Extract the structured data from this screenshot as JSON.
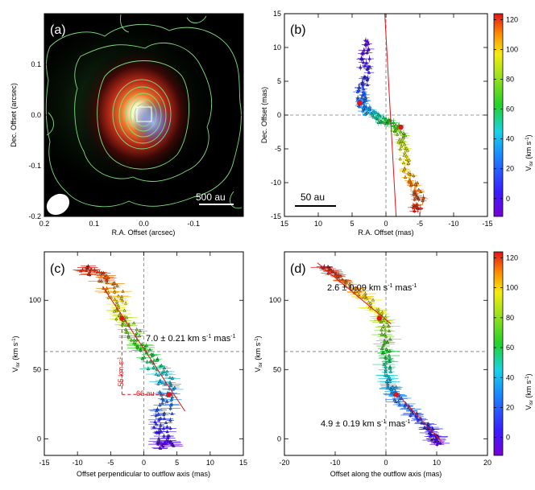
{
  "figure": {
    "colorbar_label": "V",
    "colorbar_sub": "lsr",
    "colorbar_unit": "(km s",
    "colorbar_unit_tail": ")",
    "colorbar_ticks": [
      0,
      20,
      40,
      60,
      80,
      100,
      120
    ],
    "colorbar_range": [
      -12,
      124
    ],
    "colors": {
      "violet": "#7a00d6",
      "blue": "#1a3cff",
      "cyan": "#19d3e6",
      "green": "#24d12a",
      "yellow": "#f4ec10",
      "orange": "#ff8c00",
      "red": "#e0141a"
    }
  },
  "chart_data": [
    {
      "panel": "(a)",
      "type": "heatmap",
      "description_title": "",
      "xlabel": "R.A. Offset (arcsec)",
      "ylabel": "Dec. Offset (arcsec)",
      "xlim": [
        0.2,
        -0.2
      ],
      "ylim": [
        -0.2,
        0.2
      ],
      "xticks": [
        "0.2",
        "0.1",
        "0.0",
        "-0.1"
      ],
      "yticks": [
        "-0.2",
        "-0.1",
        "0.0",
        "0.1"
      ],
      "scalebar_label": "500 au"
    },
    {
      "panel": "(b)",
      "type": "scatter",
      "xlabel": "R.A. Offset (mas)",
      "ylabel": "Dec. Offset (mas)",
      "xlim": [
        15,
        -15
      ],
      "ylim": [
        -15,
        15
      ],
      "xticks": [
        15,
        10,
        5,
        0,
        -5,
        -10,
        -15
      ],
      "yticks": [
        -15,
        -10,
        -5,
        0,
        5,
        10,
        15
      ],
      "scalebar_label": "50 au",
      "trend": [
        {
          "x": 3.0,
          "y": 11,
          "v": -5
        },
        {
          "x": 3.0,
          "y": 8,
          "v": 0
        },
        {
          "x": 3.3,
          "y": 5,
          "v": 8
        },
        {
          "x": 3.6,
          "y": 2.5,
          "v": 25
        },
        {
          "x": 3.5,
          "y": 1.5,
          "v": 28
        },
        {
          "x": 2.5,
          "y": 0.5,
          "v": 38
        },
        {
          "x": 1.0,
          "y": -0.5,
          "v": 52
        },
        {
          "x": -0.5,
          "y": -1.0,
          "v": 62
        },
        {
          "x": -2.0,
          "y": -2.0,
          "v": 75
        },
        {
          "x": -2.5,
          "y": -4.0,
          "v": 88
        },
        {
          "x": -2.8,
          "y": -7.0,
          "v": 98
        },
        {
          "x": -4.0,
          "y": -10.0,
          "v": 110
        },
        {
          "x": -5.0,
          "y": -12.0,
          "v": 116
        },
        {
          "x": -4.5,
          "y": -14.0,
          "v": 122
        }
      ],
      "markers": [
        {
          "x": 3.9,
          "y": 1.8
        },
        {
          "x": -2.2,
          "y": -1.8
        }
      ],
      "fit_line": [
        {
          "x": 0.2,
          "y": 15.5
        },
        {
          "x": -1.5,
          "y": -15
        }
      ]
    },
    {
      "panel": "(c)",
      "type": "scatter",
      "xlabel": "Offset perpendicular to outflow axis (mas)",
      "ylabel": "V",
      "xlim": [
        -15,
        15
      ],
      "ylim": [
        -12,
        135
      ],
      "xticks": [
        -15,
        -10,
        -5,
        0,
        5,
        10,
        15
      ],
      "yticks": [
        0,
        50,
        100
      ],
      "fit_label": "7.0 ± 0.21 km s",
      "fit_label_unit_tail": " mas",
      "fit_label_exp": "-1",
      "bracket_v_label": "55 km s",
      "bracket_v_exp": "-1",
      "bracket_x_label": "66 au",
      "trend": [
        {
          "x": -9.5,
          "y": 124,
          "v": 124
        },
        {
          "x": -7,
          "y": 119,
          "v": 119
        },
        {
          "x": -5,
          "y": 111,
          "v": 111
        },
        {
          "x": -3.8,
          "y": 100,
          "v": 100
        },
        {
          "x": -3.3,
          "y": 88,
          "v": 88
        },
        {
          "x": -1.5,
          "y": 76,
          "v": 76
        },
        {
          "x": 0,
          "y": 65,
          "v": 65
        },
        {
          "x": 1.5,
          "y": 54,
          "v": 54
        },
        {
          "x": 3.0,
          "y": 43,
          "v": 43
        },
        {
          "x": 3.8,
          "y": 32,
          "v": 32
        },
        {
          "x": 3.2,
          "y": 20,
          "v": 20
        },
        {
          "x": 2.7,
          "y": 8,
          "v": 8
        },
        {
          "x": 3.0,
          "y": -2,
          "v": -2
        },
        {
          "x": 3.5,
          "y": -6,
          "v": -6
        }
      ],
      "markers": [
        {
          "x": -3.3,
          "y": 87
        },
        {
          "x": 3.8,
          "y": 32
        }
      ],
      "fit_line": [
        {
          "x": -6.2,
          "y": 110
        },
        {
          "x": 6.2,
          "y": 20
        }
      ],
      "bracket": {
        "x_left": -3.3,
        "x_right": 3.8,
        "y_top": 87,
        "y_bottom": 32
      }
    },
    {
      "panel": "(d)",
      "type": "scatter",
      "xlabel": "Offset along the outflow axis (mas)",
      "ylabel": "V",
      "xlim": [
        -20,
        20
      ],
      "ylim": [
        -12,
        135
      ],
      "xticks": [
        -20,
        -10,
        0,
        10,
        20
      ],
      "yticks": [
        0,
        50,
        100
      ],
      "fit_label_top": "2.6 ± 0.09 km s",
      "fit_label_top_exp": "-1",
      "fit_label_top_tail": " mas",
      "fit_label_top_tail_exp": "-1",
      "fit_label_bottom": "4.9 ± 0.19 km s",
      "fit_label_bottom_exp": "-1",
      "fit_label_bottom_tail": " mas",
      "fit_label_bottom_tail_exp": "-1",
      "trend": [
        {
          "x": -12,
          "y": 124,
          "v": 124
        },
        {
          "x": -10,
          "y": 118,
          "v": 118
        },
        {
          "x": -7,
          "y": 110,
          "v": 110
        },
        {
          "x": -4,
          "y": 102,
          "v": 102
        },
        {
          "x": -1,
          "y": 90,
          "v": 90
        },
        {
          "x": 0,
          "y": 80,
          "v": 80
        },
        {
          "x": 0,
          "y": 65,
          "v": 65
        },
        {
          "x": 0.5,
          "y": 50,
          "v": 50
        },
        {
          "x": 1,
          "y": 38,
          "v": 38
        },
        {
          "x": 2,
          "y": 30,
          "v": 30
        },
        {
          "x": 5,
          "y": 20,
          "v": 20
        },
        {
          "x": 8,
          "y": 10,
          "v": 10
        },
        {
          "x": 9.5,
          "y": 2,
          "v": 2
        },
        {
          "x": 10,
          "y": -4,
          "v": -4
        }
      ],
      "markers": [
        {
          "x": -1.3,
          "y": 87
        },
        {
          "x": 2.0,
          "y": 32
        }
      ],
      "fit_line_top": [
        {
          "x": -13.5,
          "y": 127
        },
        {
          "x": 1.0,
          "y": 83
        }
      ],
      "fit_line_bottom": [
        {
          "x": 1.8,
          "y": 34
        },
        {
          "x": 11,
          "y": -2
        }
      ]
    }
  ]
}
